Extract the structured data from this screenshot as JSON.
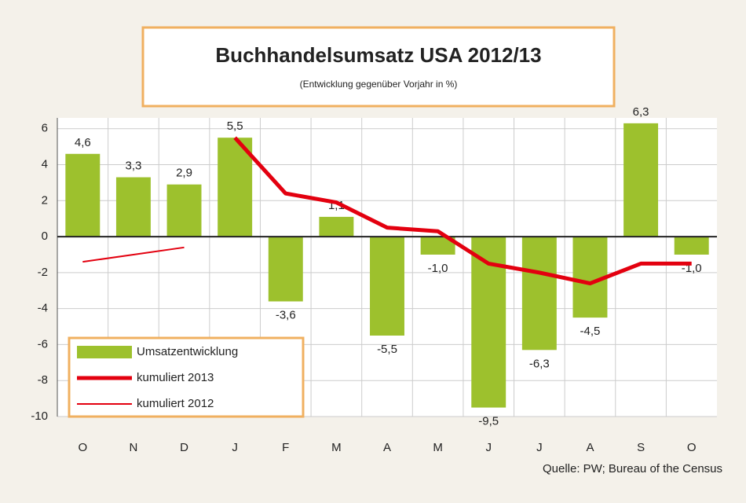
{
  "chart_data": {
    "type": "bar",
    "title": "Buchhandelsumsatz USA 2012/13",
    "subtitle": "(Entwicklung gegenüber Vorjahr in %)",
    "source": "Quelle: PW; Bureau of the Census",
    "categories": [
      "O",
      "N",
      "D",
      "J",
      "F",
      "M",
      "A",
      "M",
      "J",
      "J",
      "A",
      "S",
      "O"
    ],
    "series": [
      {
        "name": "Umsatzentwicklung",
        "type": "bar",
        "color": "#9dc12d",
        "values": [
          4.6,
          3.3,
          2.9,
          5.5,
          -3.6,
          1.1,
          -5.5,
          -1.0,
          -9.5,
          -6.3,
          -4.5,
          6.3,
          -1.0
        ],
        "value_labels": [
          "4,6",
          "3,3",
          "2,9",
          "5,5",
          "-3,6",
          "1,1",
          "-5,5",
          "-1,0",
          "-9,5",
          "-6,3",
          "-4,5",
          "6,3",
          "-1,0"
        ]
      },
      {
        "name": "kumuliert 2013",
        "type": "line",
        "color": "#e3000f",
        "values": [
          null,
          null,
          null,
          5.5,
          2.4,
          1.9,
          0.5,
          0.3,
          -1.5,
          -2.0,
          -2.6,
          -1.5,
          -1.5
        ]
      },
      {
        "name": "kumuliert 2012",
        "type": "line",
        "color": "#e3000f",
        "values": [
          -1.4,
          -1.0,
          -0.6,
          null,
          null,
          null,
          null,
          null,
          null,
          null,
          null,
          null,
          null
        ]
      }
    ],
    "ylim": [
      -10,
      6.6
    ],
    "yticks": [
      6,
      4,
      2,
      0,
      -2,
      -4,
      -6,
      -8,
      -10
    ],
    "grid": true
  }
}
